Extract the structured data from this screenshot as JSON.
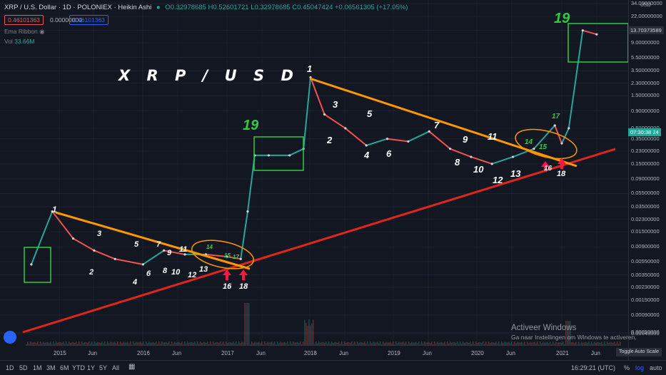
{
  "header": {
    "symbol_line": "XRP / U.S. Dollar · 1D · POLONIEX · Heikin Ashi",
    "ohlc": "O0.32978685 H0.52601721 L0.32978685 C0.45047424 +0.06561305 (+17.05%)",
    "sell_price": "0.46101363",
    "spread": "0.00000000",
    "buy_price": "0.46101363",
    "indicator_ribbon": "Ema Ribbon",
    "indicator_vol": "Vol",
    "vol_value": "33.66M"
  },
  "overlay_title": "X R P / U S D",
  "annotations": [
    {
      "text": "1",
      "color": "#ffffff"
    },
    {
      "text": "2",
      "color": "#ffffff"
    },
    {
      "text": "3",
      "color": "#ffffff"
    },
    {
      "text": "4",
      "color": "#ffffff"
    },
    {
      "text": "5",
      "color": "#ffffff"
    },
    {
      "text": "6",
      "color": "#ffffff"
    },
    {
      "text": "7",
      "color": "#ffffff"
    },
    {
      "text": "8",
      "color": "#ffffff"
    },
    {
      "text": "9",
      "color": "#ffffff"
    },
    {
      "text": "10",
      "color": "#ffffff"
    },
    {
      "text": "11",
      "color": "#ffffff"
    },
    {
      "text": "12",
      "color": "#ffffff"
    },
    {
      "text": "13",
      "color": "#ffffff"
    },
    {
      "text": "14",
      "color": "#2ecc40"
    },
    {
      "text": "15",
      "color": "#2ecc40"
    },
    {
      "text": "17",
      "color": "#2ecc40"
    },
    {
      "text": "16",
      "color": "#ffffff"
    },
    {
      "text": "18",
      "color": "#ffffff"
    },
    {
      "text": "19",
      "color": "#2ecc40"
    },
    {
      "text": "1",
      "color": "#ffffff"
    },
    {
      "text": "2",
      "color": "#ffffff"
    },
    {
      "text": "3",
      "color": "#ffffff"
    },
    {
      "text": "4",
      "color": "#ffffff"
    },
    {
      "text": "5",
      "color": "#ffffff"
    },
    {
      "text": "6",
      "color": "#ffffff"
    },
    {
      "text": "7",
      "color": "#ffffff"
    },
    {
      "text": "8",
      "color": "#ffffff"
    },
    {
      "text": "9",
      "color": "#ffffff"
    },
    {
      "text": "10",
      "color": "#ffffff"
    },
    {
      "text": "11",
      "color": "#ffffff"
    },
    {
      "text": "12",
      "color": "#ffffff"
    },
    {
      "text": "13",
      "color": "#ffffff"
    },
    {
      "text": "14",
      "color": "#2ecc40"
    },
    {
      "text": "15",
      "color": "#2ecc40"
    },
    {
      "text": "17",
      "color": "#2ecc40"
    },
    {
      "text": "16",
      "color": "#ffffff"
    },
    {
      "text": "18",
      "color": "#ffffff"
    },
    {
      "text": "19",
      "color": "#2ecc40"
    }
  ],
  "chart_data": {
    "type": "line",
    "title": "",
    "price_scale": "log",
    "y_axis_unit": "USD",
    "y_ticks": [
      "34.00000000",
      "22.00000000",
      "13.70373589",
      "9.00000000",
      "5.50000000",
      "3.50000000",
      "2.30000000",
      "1.50000000",
      "0.90000000",
      "0.50000000",
      "0.35000000",
      "0.23000000",
      "0.15000000",
      "0.09000000",
      "0.05500000",
      "0.03500000",
      "0.02300000",
      "0.01500000",
      "0.00900000",
      "0.00550000",
      "0.00350000",
      "0.00230000",
      "0.00150000",
      "0.00090000",
      "0.00050000",
      "0.00048000"
    ],
    "x_ticks": [
      "2015",
      "Jun",
      "2016",
      "Jun",
      "2017",
      "Jun",
      "2018",
      "Jun",
      "2019",
      "Jun",
      "2020",
      "Jun",
      "2021",
      "Jun"
    ],
    "series": [
      {
        "values_description": "",
        "x": [
          "2014-09",
          "2014-12",
          "2015-03",
          "2015-06",
          "2015-09",
          "2016-01",
          "2016-04",
          "2016-07",
          "2016-10",
          "2017-01",
          "2017-03",
          "2017-04",
          "2017-05",
          "2017-07",
          "2017-10",
          "2017-12",
          "2018-01",
          "2018-03",
          "2018-06",
          "2018-09",
          "2018-12",
          "2019-03",
          "2019-06",
          "2019-09",
          "2019-12",
          "2020-03",
          "2020-06",
          "2020-09",
          "2020-12",
          "2021-01",
          "2021-02",
          "2021-04",
          "2021-06"
        ],
        "y": [
          0.005,
          0.03,
          0.012,
          0.008,
          0.006,
          0.005,
          0.008,
          0.007,
          0.007,
          0.0065,
          0.006,
          0.03,
          0.2,
          0.2,
          0.2,
          0.25,
          2.8,
          0.8,
          0.5,
          0.28,
          0.35,
          0.32,
          0.45,
          0.25,
          0.19,
          0.15,
          0.19,
          0.25,
          0.55,
          0.3,
          0.5,
          13.7,
          12.0
        ]
      }
    ],
    "markers": {
      "current_price": "13.70373589",
      "last_close": "0.45047424",
      "countdown": "07:30:38"
    }
  },
  "status": {
    "windows_title": "Activeer Windows",
    "windows_sub": "Ga naar Instellingen om Windows te activeren.",
    "clock": "16:29:21 (UTC)",
    "toggle_tooltip": "Toggle Auto Scale"
  },
  "bottom_bar": {
    "ranges": [
      "1D",
      "5D",
      "1M",
      "3M",
      "6M",
      "YTD",
      "1Y",
      "5Y",
      "All"
    ],
    "percent": "%",
    "log": "log",
    "auto": "auto"
  },
  "colors": {
    "background": "#131722",
    "up": "#26a69a",
    "down": "#ef5350",
    "resistance": "#ff9800",
    "support": "#e0261b",
    "box": "#2ecc40",
    "annotation_green": "#2ecc40"
  }
}
